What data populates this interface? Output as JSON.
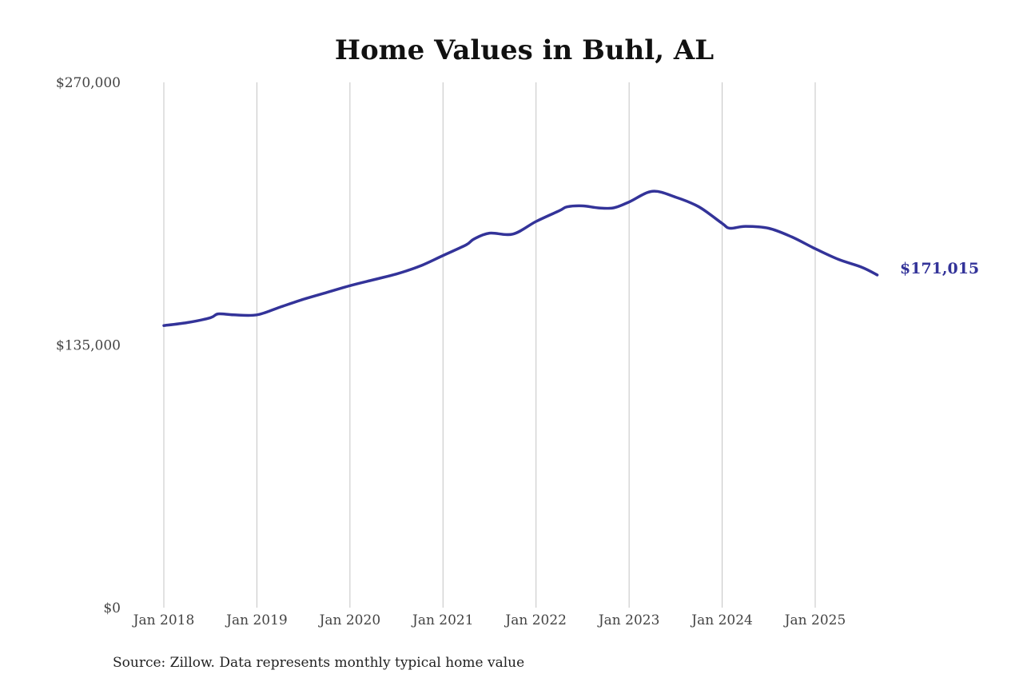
{
  "chart_data": {
    "type": "line",
    "title": "Home Values in Buhl, AL",
    "source": "Source: Zillow. Data represents monthly typical home value",
    "xlabel": "",
    "ylabel": "",
    "ylim": [
      0,
      270000
    ],
    "xlim": [
      "2018-01",
      "2025-09"
    ],
    "y_ticks": [
      {
        "value": 0,
        "label": "$0"
      },
      {
        "value": 135000,
        "label": "$135,000"
      },
      {
        "value": 270000,
        "label": "$270,000"
      }
    ],
    "x_ticks": [
      {
        "value": "2018-01",
        "label": "Jan 2018"
      },
      {
        "value": "2019-01",
        "label": "Jan 2019"
      },
      {
        "value": "2020-01",
        "label": "Jan 2020"
      },
      {
        "value": "2021-01",
        "label": "Jan 2021"
      },
      {
        "value": "2022-01",
        "label": "Jan 2022"
      },
      {
        "value": "2023-01",
        "label": "Jan 2023"
      },
      {
        "value": "2024-01",
        "label": "Jan 2024"
      },
      {
        "value": "2025-01",
        "label": "Jan 2025"
      }
    ],
    "grid": "vertical",
    "line_color": "#333399",
    "end_label": "$171,015",
    "series": [
      {
        "x": [
          "2018-01",
          "2018-04",
          "2018-07",
          "2018-08",
          "2018-10",
          "2019-01",
          "2019-04",
          "2019-07",
          "2019-10",
          "2020-01",
          "2020-04",
          "2020-07",
          "2020-10",
          "2021-01",
          "2021-04",
          "2021-05",
          "2021-07",
          "2021-10",
          "2022-01",
          "2022-04",
          "2022-05",
          "2022-07",
          "2022-09",
          "2022-11",
          "2023-01",
          "2023-04",
          "2023-07",
          "2023-10",
          "2024-01",
          "2024-02",
          "2024-04",
          "2024-07",
          "2024-10",
          "2025-01",
          "2025-04",
          "2025-07",
          "2025-09"
        ],
        "y": [
          145000,
          146500,
          149000,
          151000,
          150500,
          150500,
          154500,
          158500,
          162000,
          165500,
          168500,
          171500,
          175500,
          181000,
          186500,
          189500,
          192500,
          192000,
          198500,
          204000,
          206000,
          206500,
          205500,
          205500,
          208500,
          214000,
          211000,
          206000,
          197500,
          195000,
          196000,
          195000,
          190500,
          184500,
          179000,
          175000,
          171015
        ]
      }
    ]
  }
}
